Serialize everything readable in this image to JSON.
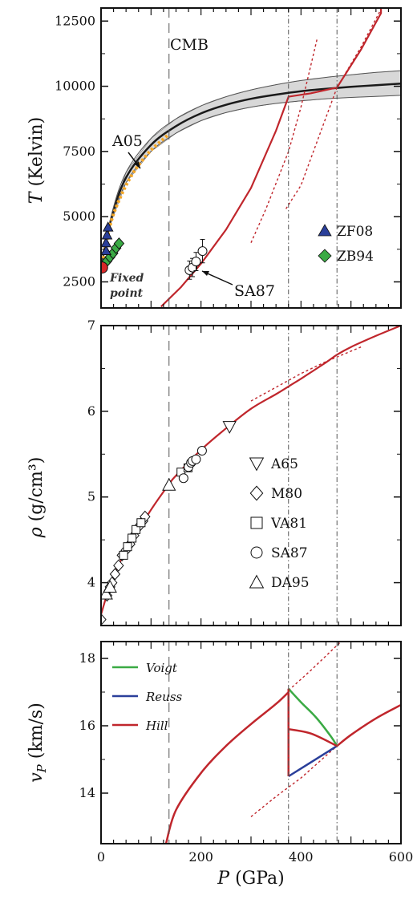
{
  "chart_data": [
    {
      "type": "line",
      "panel": "temperature",
      "ylabel_symbol": "T",
      "ylabel_unit": "(Kelvin)",
      "xlim": [
        0,
        600
      ],
      "ylim": [
        1500,
        13000
      ],
      "yticks": [
        2500,
        5000,
        7500,
        10000,
        12500
      ],
      "annotations": {
        "cmb": "CMB",
        "a05": "A05",
        "sa87": "SA87",
        "fixed_point_1": "Fixed",
        "fixed_point_2": "point"
      },
      "cmb_pressure": 136,
      "boundary_pressures": [
        375,
        472
      ],
      "legend": [
        {
          "label": "ZF08",
          "marker": "triangle",
          "color": "#2a3f9a"
        },
        {
          "label": "ZB94",
          "marker": "diamond",
          "color": "#3aaa44"
        }
      ],
      "adiabat": {
        "color": "#1a1a1a",
        "band_color": "#d8d8d8",
        "x": [
          0,
          20,
          50,
          100,
          150,
          200,
          250,
          300,
          350,
          400,
          450,
          500,
          550,
          600
        ],
        "y": [
          3050,
          4900,
          6500,
          7750,
          8470,
          8960,
          9290,
          9520,
          9680,
          9810,
          9900,
          9980,
          10040,
          10100
        ],
        "upper": [
          3050,
          5020,
          6700,
          8000,
          8750,
          9250,
          9600,
          9860,
          10060,
          10220,
          10340,
          10440,
          10530,
          10600
        ],
        "lower": [
          3050,
          4780,
          6300,
          7500,
          8200,
          8680,
          8990,
          9200,
          9340,
          9440,
          9520,
          9570,
          9610,
          9650
        ]
      },
      "a05": {
        "color": "#f5a623",
        "x": [
          5,
          20,
          40,
          60,
          80,
          100,
          120,
          135
        ],
        "y": [
          3400,
          4800,
          5800,
          6550,
          7100,
          7550,
          7900,
          8150
        ]
      },
      "melting_curve": {
        "color": "#c0262c",
        "x": [
          120,
          160,
          200,
          250,
          300,
          350,
          375,
          420,
          472,
          520,
          560,
          560
        ],
        "y": [
          1550,
          2300,
          3200,
          4500,
          6100,
          8300,
          9600,
          9730,
          9950,
          11400,
          12800,
          13000
        ]
      },
      "melting_dotted": [
        {
          "x": [
            300,
            330,
            375,
            400,
            432
          ],
          "y": [
            4000,
            5300,
            7500,
            9200,
            11800
          ]
        },
        {
          "x": [
            370,
            400,
            472,
            520,
            560
          ],
          "y": [
            5300,
            6200,
            9950,
            11500,
            12950
          ]
        }
      ],
      "zf08": {
        "x": [
          10,
          10,
          12,
          14
        ],
        "y": [
          3700,
          4000,
          4300,
          4600
        ]
      },
      "zb94": {
        "x": [
          12,
          18,
          24,
          30,
          36
        ],
        "y": [
          3300,
          3450,
          3600,
          3800,
          3970
        ]
      },
      "sa87": {
        "x": [
          177,
          183,
          190,
          203
        ],
        "y": [
          2950,
          3050,
          3280,
          3680
        ],
        "err": [
          350,
          350,
          350,
          450
        ]
      },
      "fixed_point": {
        "x": 2,
        "y": 3050,
        "color": "#d62728"
      }
    },
    {
      "type": "line",
      "panel": "density",
      "ylabel_symbol": "ρ",
      "ylabel_unit": "(g/cm³)",
      "xlim": [
        0,
        600
      ],
      "ylim": [
        3.5,
        7
      ],
      "yticks": [
        4,
        5,
        6,
        7
      ],
      "eos_curve": {
        "color": "#c0262c",
        "x": [
          0,
          20,
          50,
          100,
          136,
          150,
          200,
          250,
          300,
          350,
          375,
          400,
          450,
          472,
          500,
          550,
          600
        ],
        "y": [
          3.63,
          4.0,
          4.38,
          4.85,
          5.15,
          5.25,
          5.55,
          5.8,
          6.03,
          6.2,
          6.29,
          6.38,
          6.57,
          6.66,
          6.75,
          6.88,
          7.0
        ]
      },
      "eos_dotted": {
        "x": [
          300,
          350,
          400,
          450,
          520
        ],
        "y": [
          6.12,
          6.28,
          6.44,
          6.58,
          6.75
        ]
      },
      "legend": [
        {
          "label": "A65",
          "marker": "triangle-down"
        },
        {
          "label": "M80",
          "marker": "diamond"
        },
        {
          "label": "VA81",
          "marker": "square"
        },
        {
          "label": "SA87",
          "marker": "circle"
        },
        {
          "label": "DA95",
          "marker": "triangle-up"
        }
      ],
      "a65": {
        "x": [
          257
        ],
        "y": [
          5.82
        ]
      },
      "m80": {
        "x": [
          0,
          12,
          18,
          22,
          28,
          35,
          42,
          50,
          58,
          66,
          75,
          84,
          88
        ],
        "y": [
          3.57,
          3.85,
          3.95,
          4.0,
          4.1,
          4.2,
          4.32,
          4.38,
          4.45,
          4.55,
          4.65,
          4.72,
          4.77
        ]
      },
      "va81": {
        "x": [
          45,
          53,
          62,
          70,
          80,
          160,
          174
        ],
        "y": [
          4.32,
          4.42,
          4.52,
          4.62,
          4.7,
          5.29,
          5.34
        ]
      },
      "sa87": {
        "x": [
          165,
          175,
          180,
          183,
          190,
          202
        ],
        "y": [
          5.22,
          5.35,
          5.4,
          5.42,
          5.44,
          5.54
        ]
      },
      "da95": {
        "x": [
          10,
          18,
          136
        ],
        "y": [
          3.87,
          3.95,
          5.14
        ]
      }
    },
    {
      "type": "line",
      "panel": "velocity",
      "ylabel_symbol": "v",
      "ylabel_sub": "P",
      "ylabel_unit": "(km/s)",
      "xlabel_symbol": "P",
      "xlabel_unit": "(GPa)",
      "xlim": [
        0,
        600
      ],
      "ylim": [
        12.5,
        18.5
      ],
      "yticks": [
        14,
        16,
        18
      ],
      "xticks": [
        0,
        200,
        400,
        600
      ],
      "legend": [
        {
          "label": "Voigt",
          "color": "#3aaa44"
        },
        {
          "label": "Reuss",
          "color": "#2a3f9a"
        },
        {
          "label": "Hill",
          "color": "#c0262c"
        }
      ],
      "solid": {
        "x": [
          130,
          150,
          200,
          250,
          300,
          350,
          375
        ],
        "y": [
          12.5,
          13.5,
          14.6,
          15.4,
          16.05,
          16.65,
          17.0
        ]
      },
      "liquid": {
        "x": [
          472,
          500,
          550,
          600
        ],
        "y": [
          15.4,
          15.73,
          16.22,
          16.62
        ]
      },
      "voigt": {
        "x": [
          375,
          400,
          430,
          460,
          472
        ],
        "y": [
          17.1,
          16.7,
          16.25,
          15.68,
          15.4
        ]
      },
      "reuss": {
        "x": [
          375,
          472
        ],
        "y": [
          14.5,
          15.4
        ]
      },
      "hill": {
        "x": [
          375,
          420,
          472
        ],
        "y": [
          15.9,
          15.77,
          15.4
        ]
      },
      "dotted_solid": {
        "x": [
          375,
          420,
          480
        ],
        "y": [
          17.05,
          17.65,
          18.5
        ]
      },
      "dotted_liquid": {
        "x": [
          300,
          350,
          400,
          472
        ],
        "y": [
          13.3,
          13.9,
          14.45,
          15.4
        ]
      }
    }
  ]
}
